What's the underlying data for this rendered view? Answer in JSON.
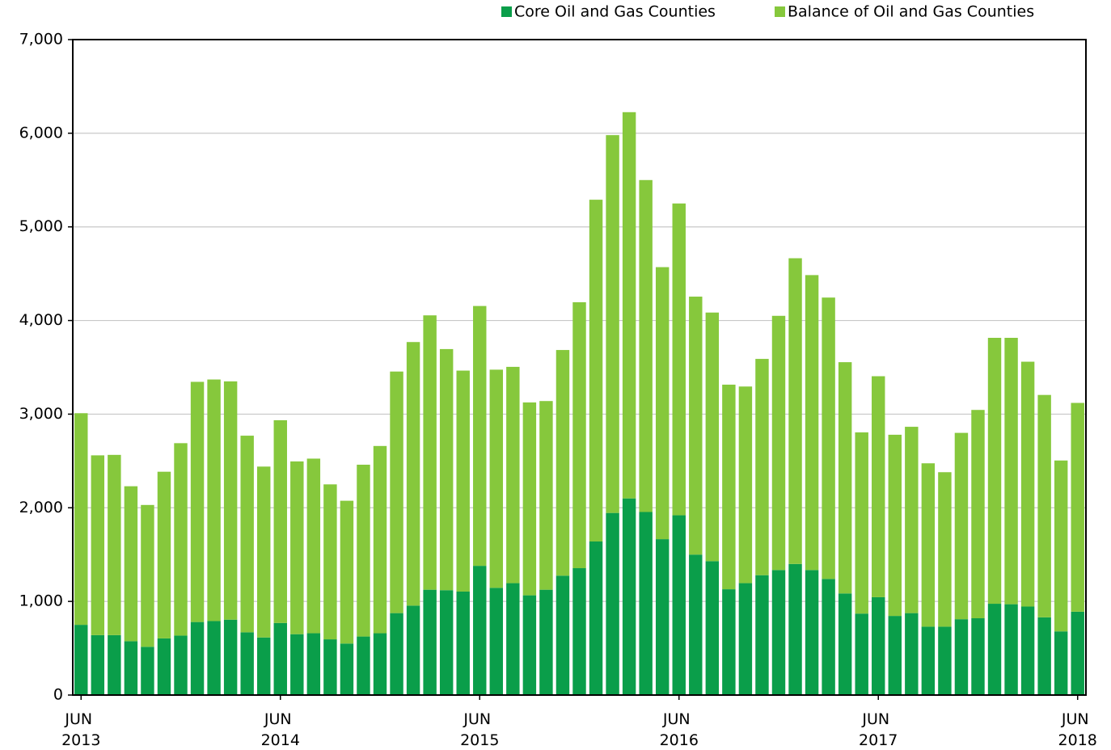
{
  "chart_data": {
    "type": "stacked_bar",
    "categories": [
      "JUN 2013",
      null,
      null,
      null,
      null,
      null,
      null,
      null,
      null,
      null,
      null,
      null,
      "JUN 2014",
      null,
      null,
      null,
      null,
      null,
      null,
      null,
      null,
      null,
      null,
      null,
      "JUN 2015",
      null,
      null,
      null,
      null,
      null,
      null,
      null,
      null,
      null,
      null,
      null,
      "JUN 2016",
      null,
      null,
      null,
      null,
      null,
      null,
      null,
      null,
      null,
      null,
      null,
      "JUN 2017",
      null,
      null,
      null,
      null,
      null,
      null,
      null,
      null,
      null,
      null,
      null,
      "JUN 2018"
    ],
    "series": [
      {
        "name": "Core Oil and Gas Counties",
        "color": "#0a9e4a",
        "values": [
          750,
          640,
          640,
          575,
          515,
          605,
          635,
          780,
          790,
          805,
          670,
          615,
          770,
          650,
          660,
          595,
          550,
          625,
          660,
          875,
          955,
          1125,
          1120,
          1105,
          1380,
          1145,
          1195,
          1065,
          1125,
          1275,
          1355,
          1640,
          1945,
          2100,
          1955,
          1665,
          1920,
          1500,
          1430,
          1130,
          1195,
          1280,
          1335,
          1400,
          1335,
          1240,
          1085,
          870,
          1045,
          845,
          875,
          730,
          730,
          810,
          820,
          975,
          970,
          945,
          830,
          680,
          890
        ]
      },
      {
        "name": "Balance of Oil and Gas Counties",
        "color": "#86c83c",
        "values": [
          2260,
          1920,
          1925,
          1655,
          1515,
          1780,
          2055,
          2565,
          2580,
          2545,
          2100,
          1825,
          2165,
          1845,
          1865,
          1655,
          1525,
          1835,
          2000,
          2580,
          2815,
          2930,
          2575,
          2360,
          2775,
          2330,
          2310,
          2060,
          2015,
          2410,
          2840,
          3650,
          4035,
          4125,
          3545,
          2905,
          3330,
          2755,
          2655,
          2185,
          2100,
          2310,
          2715,
          3265,
          3150,
          3005,
          2470,
          1935,
          2360,
          1935,
          1990,
          1745,
          1650,
          1990,
          2225,
          2840,
          2845,
          2615,
          2375,
          1825,
          2230
        ]
      }
    ],
    "ylim": [
      0,
      7000
    ],
    "yticks": [
      0,
      {
        "value": 1000,
        "label": "1,000"
      },
      {
        "value": 2000,
        "label": "2,000"
      },
      {
        "value": 3000,
        "label": "3,000"
      },
      {
        "value": 4000,
        "label": "4,000"
      },
      {
        "value": 5000,
        "label": "5,000"
      },
      {
        "value": 6000,
        "label": "6,000"
      },
      {
        "value": 7000,
        "label": "7,000"
      }
    ],
    "grid": true,
    "legend": "top"
  }
}
